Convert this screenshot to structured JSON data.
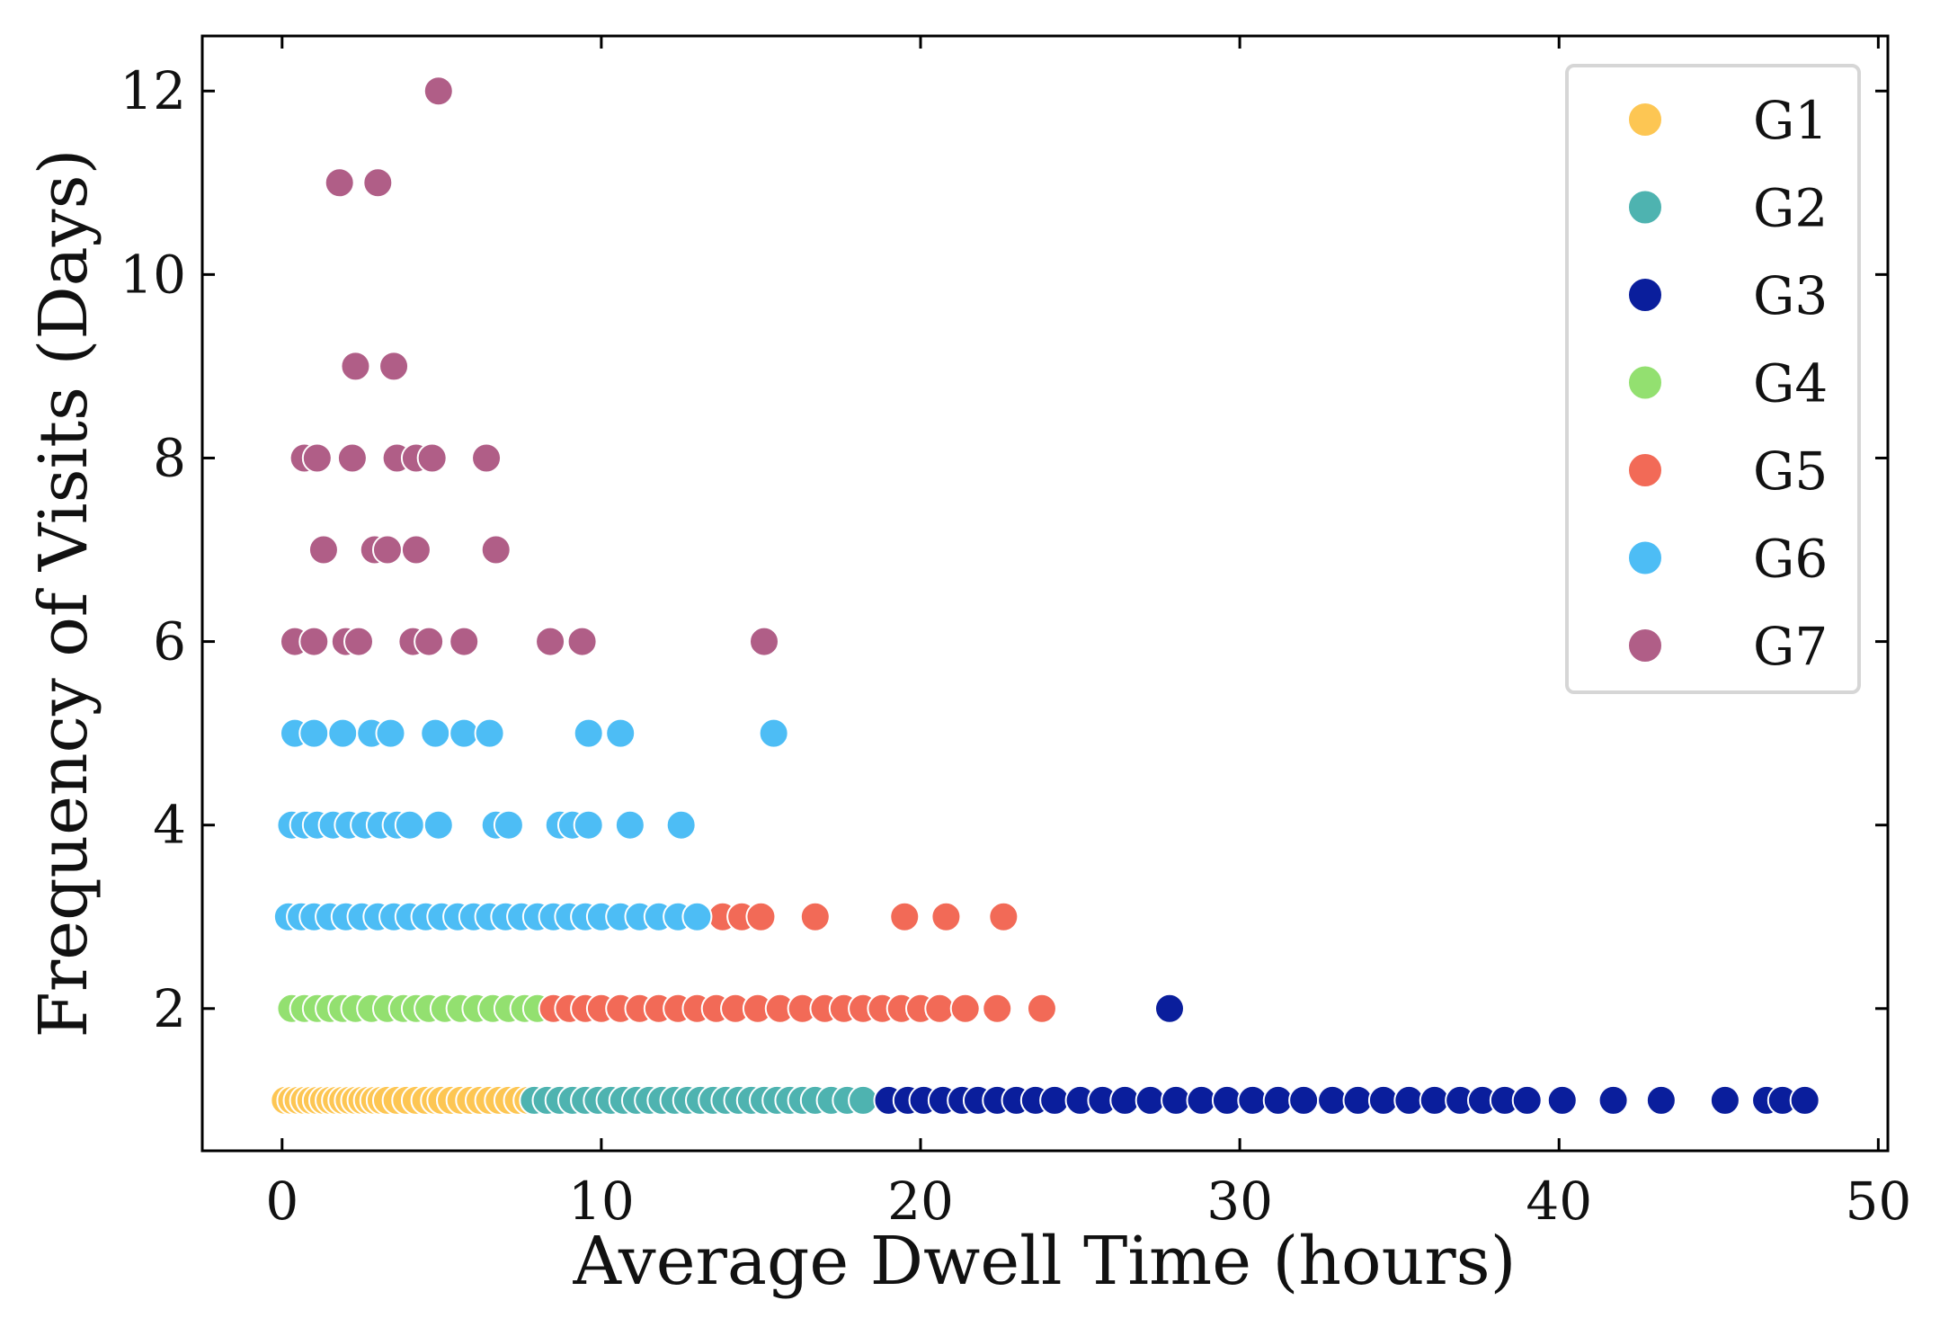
{
  "chart_data": {
    "type": "scatter",
    "xlabel": "Average Dwell Time (hours)",
    "ylabel": "Frequency of Visits (Days)",
    "xlim": [
      -2.5,
      50.3
    ],
    "ylim": [
      0.45,
      12.6
    ],
    "xticks": [
      0,
      10,
      20,
      30,
      40,
      50
    ],
    "yticks": [
      2,
      4,
      6,
      8,
      10,
      12
    ],
    "legend_position": "top-right",
    "series": [
      {
        "name": "G1",
        "color": "#FDC653",
        "points": [
          [
            0.1,
            1
          ],
          [
            0.3,
            1
          ],
          [
            0.5,
            1
          ],
          [
            0.7,
            1
          ],
          [
            0.9,
            1
          ],
          [
            1.1,
            1
          ],
          [
            1.3,
            1
          ],
          [
            1.5,
            1
          ],
          [
            1.7,
            1
          ],
          [
            1.9,
            1
          ],
          [
            2.1,
            1
          ],
          [
            2.3,
            1
          ],
          [
            2.5,
            1
          ],
          [
            2.7,
            1
          ],
          [
            2.9,
            1
          ],
          [
            3.1,
            1
          ],
          [
            3.3,
            1
          ],
          [
            3.6,
            1
          ],
          [
            3.9,
            1
          ],
          [
            4.2,
            1
          ],
          [
            4.5,
            1
          ],
          [
            4.8,
            1
          ],
          [
            5.0,
            1
          ],
          [
            5.3,
            1
          ],
          [
            5.6,
            1
          ],
          [
            5.9,
            1
          ],
          [
            6.2,
            1
          ],
          [
            6.5,
            1
          ],
          [
            6.8,
            1
          ],
          [
            7.1,
            1
          ],
          [
            7.4,
            1
          ],
          [
            7.7,
            1
          ]
        ]
      },
      {
        "name": "G2",
        "color": "#4EB3B0",
        "points": [
          [
            7.9,
            1
          ],
          [
            8.3,
            1
          ],
          [
            8.7,
            1
          ],
          [
            9.1,
            1
          ],
          [
            9.5,
            1
          ],
          [
            9.9,
            1
          ],
          [
            10.3,
            1
          ],
          [
            10.7,
            1
          ],
          [
            11.1,
            1
          ],
          [
            11.5,
            1
          ],
          [
            11.9,
            1
          ],
          [
            12.3,
            1
          ],
          [
            12.7,
            1
          ],
          [
            13.1,
            1
          ],
          [
            13.5,
            1
          ],
          [
            13.9,
            1
          ],
          [
            14.3,
            1
          ],
          [
            14.7,
            1
          ],
          [
            15.1,
            1
          ],
          [
            15.5,
            1
          ],
          [
            15.9,
            1
          ],
          [
            16.3,
            1
          ],
          [
            16.7,
            1
          ],
          [
            17.2,
            1
          ],
          [
            17.7,
            1
          ],
          [
            18.2,
            1
          ]
        ]
      },
      {
        "name": "G3",
        "color": "#0A1E9C",
        "points": [
          [
            19.0,
            1
          ],
          [
            19.6,
            1
          ],
          [
            20.1,
            1
          ],
          [
            20.7,
            1
          ],
          [
            21.3,
            1
          ],
          [
            21.8,
            1
          ],
          [
            22.4,
            1
          ],
          [
            23.0,
            1
          ],
          [
            23.6,
            1
          ],
          [
            24.2,
            1
          ],
          [
            25.0,
            1
          ],
          [
            25.7,
            1
          ],
          [
            26.4,
            1
          ],
          [
            27.2,
            1
          ],
          [
            28.0,
            1
          ],
          [
            28.8,
            1
          ],
          [
            29.6,
            1
          ],
          [
            30.4,
            1
          ],
          [
            31.2,
            1
          ],
          [
            32.0,
            1
          ],
          [
            32.9,
            1
          ],
          [
            33.7,
            1
          ],
          [
            34.5,
            1
          ],
          [
            35.3,
            1
          ],
          [
            36.1,
            1
          ],
          [
            36.9,
            1
          ],
          [
            37.6,
            1
          ],
          [
            38.3,
            1
          ],
          [
            39.0,
            1
          ],
          [
            40.1,
            1
          ],
          [
            41.7,
            1
          ],
          [
            43.2,
            1
          ],
          [
            45.2,
            1
          ],
          [
            46.5,
            1
          ],
          [
            47.0,
            1
          ],
          [
            47.7,
            1
          ],
          [
            27.8,
            2
          ]
        ]
      },
      {
        "name": "G4",
        "color": "#93E070",
        "points": [
          [
            0.3,
            2
          ],
          [
            0.7,
            2
          ],
          [
            1.1,
            2
          ],
          [
            1.5,
            2
          ],
          [
            1.9,
            2
          ],
          [
            2.3,
            2
          ],
          [
            2.8,
            2
          ],
          [
            3.3,
            2
          ],
          [
            3.8,
            2
          ],
          [
            4.2,
            2
          ],
          [
            4.6,
            2
          ],
          [
            5.1,
            2
          ],
          [
            5.6,
            2
          ],
          [
            6.1,
            2
          ],
          [
            6.6,
            2
          ],
          [
            7.1,
            2
          ],
          [
            7.6,
            2
          ],
          [
            8.0,
            2
          ]
        ]
      },
      {
        "name": "G5",
        "color": "#F26A57",
        "points": [
          [
            8.5,
            2
          ],
          [
            9.0,
            2
          ],
          [
            9.5,
            2
          ],
          [
            10.0,
            2
          ],
          [
            10.6,
            2
          ],
          [
            11.2,
            2
          ],
          [
            11.8,
            2
          ],
          [
            12.4,
            2
          ],
          [
            13.0,
            2
          ],
          [
            13.6,
            2
          ],
          [
            14.2,
            2
          ],
          [
            14.9,
            2
          ],
          [
            15.6,
            2
          ],
          [
            16.3,
            2
          ],
          [
            17.0,
            2
          ],
          [
            17.6,
            2
          ],
          [
            18.2,
            2
          ],
          [
            18.8,
            2
          ],
          [
            19.4,
            2
          ],
          [
            20.0,
            2
          ],
          [
            20.6,
            2
          ],
          [
            21.4,
            2
          ],
          [
            22.4,
            2
          ],
          [
            23.8,
            2
          ],
          [
            13.8,
            3
          ],
          [
            14.4,
            3
          ],
          [
            15.0,
            3
          ],
          [
            16.7,
            3
          ],
          [
            19.5,
            3
          ],
          [
            20.8,
            3
          ],
          [
            22.6,
            3
          ]
        ]
      },
      {
        "name": "G6",
        "color": "#4DBDF5",
        "points": [
          [
            0.2,
            3
          ],
          [
            0.6,
            3
          ],
          [
            1.0,
            3
          ],
          [
            1.5,
            3
          ],
          [
            2.0,
            3
          ],
          [
            2.5,
            3
          ],
          [
            3.0,
            3
          ],
          [
            3.5,
            3
          ],
          [
            4.0,
            3
          ],
          [
            4.5,
            3
          ],
          [
            5.0,
            3
          ],
          [
            5.5,
            3
          ],
          [
            6.0,
            3
          ],
          [
            6.5,
            3
          ],
          [
            7.0,
            3
          ],
          [
            7.5,
            3
          ],
          [
            8.0,
            3
          ],
          [
            8.5,
            3
          ],
          [
            9.0,
            3
          ],
          [
            9.5,
            3
          ],
          [
            10.0,
            3
          ],
          [
            10.6,
            3
          ],
          [
            11.2,
            3
          ],
          [
            11.8,
            3
          ],
          [
            12.4,
            3
          ],
          [
            13.0,
            3
          ],
          [
            0.3,
            4
          ],
          [
            0.7,
            4
          ],
          [
            1.1,
            4
          ],
          [
            1.6,
            4
          ],
          [
            2.1,
            4
          ],
          [
            2.6,
            4
          ],
          [
            3.1,
            4
          ],
          [
            3.6,
            4
          ],
          [
            4.0,
            4
          ],
          [
            4.9,
            4
          ],
          [
            6.7,
            4
          ],
          [
            7.1,
            4
          ],
          [
            8.7,
            4
          ],
          [
            9.1,
            4
          ],
          [
            9.6,
            4
          ],
          [
            10.9,
            4
          ],
          [
            12.5,
            4
          ],
          [
            0.4,
            5
          ],
          [
            1.0,
            5
          ],
          [
            1.9,
            5
          ],
          [
            2.8,
            5
          ],
          [
            3.4,
            5
          ],
          [
            4.8,
            5
          ],
          [
            5.7,
            5
          ],
          [
            6.5,
            5
          ],
          [
            9.6,
            5
          ],
          [
            10.6,
            5
          ],
          [
            15.4,
            5
          ]
        ]
      },
      {
        "name": "G7",
        "color": "#B05E87",
        "points": [
          [
            0.4,
            6
          ],
          [
            1.0,
            6
          ],
          [
            2.0,
            6
          ],
          [
            2.4,
            6
          ],
          [
            4.1,
            6
          ],
          [
            4.6,
            6
          ],
          [
            5.7,
            6
          ],
          [
            8.4,
            6
          ],
          [
            9.4,
            6
          ],
          [
            15.1,
            6
          ],
          [
            1.3,
            7
          ],
          [
            2.9,
            7
          ],
          [
            3.3,
            7
          ],
          [
            4.2,
            7
          ],
          [
            6.7,
            7
          ],
          [
            0.7,
            8
          ],
          [
            1.1,
            8
          ],
          [
            2.2,
            8
          ],
          [
            3.6,
            8
          ],
          [
            4.2,
            8
          ],
          [
            4.7,
            8
          ],
          [
            6.4,
            8
          ],
          [
            2.3,
            9
          ],
          [
            3.5,
            9
          ],
          [
            1.8,
            11
          ],
          [
            3.0,
            11
          ],
          [
            4.9,
            12
          ]
        ]
      }
    ]
  }
}
